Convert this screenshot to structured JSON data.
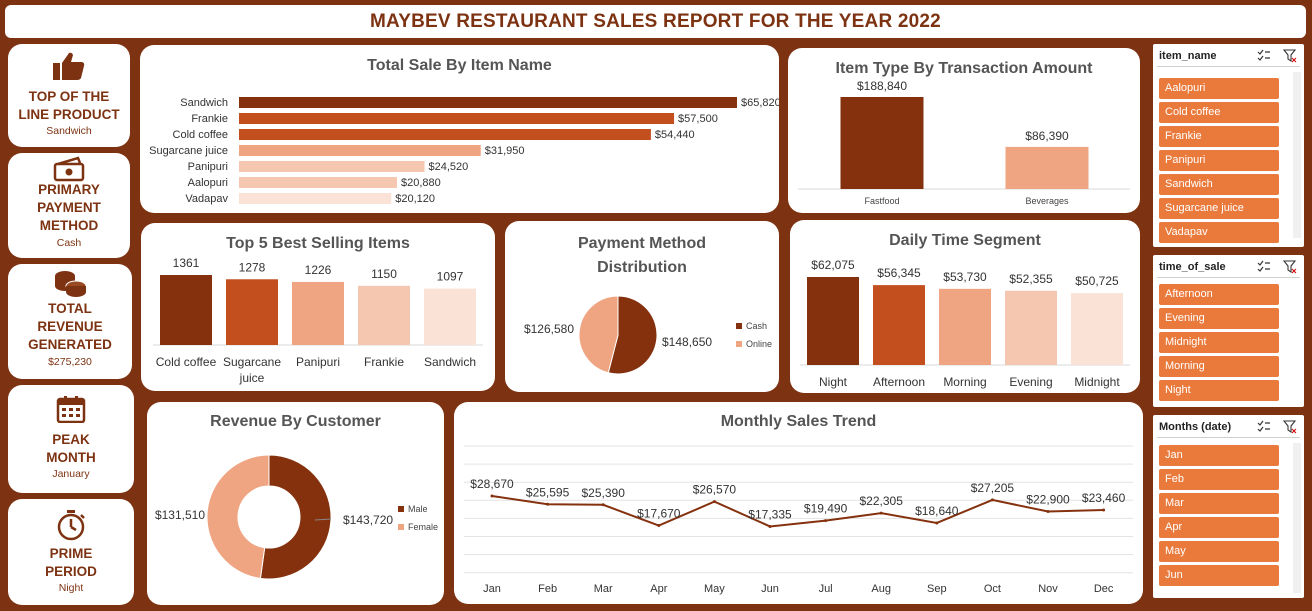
{
  "header": {
    "title": "MAYBEV RESTAURANT SALES REPORT FOR THE YEAR 2022"
  },
  "kpis": [
    {
      "title": "TOP OF THE LINE PRODUCT",
      "value": "Sandwich",
      "icon": "thumbs-up-icon"
    },
    {
      "title": "PRIMARY PAYMENT METHOD",
      "value": "Cash",
      "icon": "cash-icon"
    },
    {
      "title": "TOTAL REVENUE GENERATED",
      "value": "$275,230",
      "icon": "coins-icon"
    },
    {
      "title": "PEAK MONTH",
      "value": "January",
      "icon": "calendar-icon"
    },
    {
      "title": "PRIME PERIOD",
      "value": "Night",
      "icon": "stopwatch-icon"
    }
  ],
  "colors": {
    "brand_dark": "#7d3312",
    "c1": "#85310e",
    "c2": "#c24f1d",
    "c3": "#f0a582",
    "c4": "#f6c7b0",
    "c5": "#fbe2d6",
    "slicer_item": "#ea7a3c"
  },
  "chart_data": [
    {
      "id": "sales_by_item",
      "type": "bar",
      "orientation": "horizontal",
      "title": "Total Sale By Item Name",
      "categories": [
        "Sandwich",
        "Frankie",
        "Cold coffee",
        "Sugarcane juice",
        "Panipuri",
        "Aalopuri",
        "Vadapav"
      ],
      "values": [
        65820,
        57500,
        54440,
        31950,
        24520,
        20880,
        20120
      ],
      "labels": [
        "$65,820",
        "$57,500",
        "$54,440",
        "$31,950",
        "$24,520",
        "$20,880",
        "$20,120"
      ],
      "colors": [
        "#85310e",
        "#c24f1d",
        "#c24f1d",
        "#f0a582",
        "#f6c7b0",
        "#f6c7b0",
        "#fbe2d6"
      ]
    },
    {
      "id": "item_type",
      "type": "bar",
      "title": "Item Type By Transaction Amount",
      "categories": [
        "Fastfood",
        "Beverages"
      ],
      "values": [
        188840,
        86390
      ],
      "labels": [
        "$188,840",
        "$86,390"
      ],
      "colors": [
        "#85310e",
        "#f0a582"
      ]
    },
    {
      "id": "top5_items",
      "type": "bar",
      "title": "Top 5 Best Selling Items",
      "categories": [
        "Cold coffee",
        "Sugarcane juice",
        "Panipuri",
        "Frankie",
        "Sandwich"
      ],
      "values": [
        1361,
        1278,
        1226,
        1150,
        1097
      ],
      "labels": [
        "1361",
        "1278",
        "1226",
        "1150",
        "1097"
      ],
      "colors": [
        "#85310e",
        "#c24f1d",
        "#f0a582",
        "#f6c7b0",
        "#fbe2d6"
      ]
    },
    {
      "id": "payment_method",
      "type": "pie",
      "title": "Payment Method Distribution",
      "categories": [
        "Cash",
        "Online"
      ],
      "values": [
        148650,
        126580
      ],
      "labels": [
        "$148,650",
        "$126,580"
      ],
      "colors": [
        "#85310e",
        "#f0a582"
      ]
    },
    {
      "id": "daily_time",
      "type": "bar",
      "title": "Daily Time Segment",
      "categories": [
        "Night",
        "Afternoon",
        "Morning",
        "Evening",
        "Midnight"
      ],
      "values": [
        62075,
        56345,
        53730,
        52355,
        50725
      ],
      "labels": [
        "$62,075",
        "$56,345",
        "$53,730",
        "$52,355",
        "$50,725"
      ],
      "colors": [
        "#85310e",
        "#c24f1d",
        "#f0a582",
        "#f6c7b0",
        "#fbe2d6"
      ]
    },
    {
      "id": "revenue_by_customer",
      "type": "pie",
      "donut": true,
      "title": "Revenue By Customer",
      "categories": [
        "Male",
        "Female"
      ],
      "values": [
        143720,
        131510
      ],
      "labels": [
        "$143,720",
        "$131,510"
      ],
      "colors": [
        "#85310e",
        "#f0a582"
      ]
    },
    {
      "id": "monthly_trend",
      "type": "line",
      "title": "Monthly Sales Trend",
      "categories": [
        "Jan",
        "Feb",
        "Mar",
        "Apr",
        "May",
        "Jun",
        "Jul",
        "Aug",
        "Sep",
        "Oct",
        "Nov",
        "Dec"
      ],
      "values": [
        28670,
        25595,
        25390,
        17670,
        26570,
        17335,
        19490,
        22305,
        18640,
        27205,
        22900,
        23460
      ],
      "labels": [
        "$28,670",
        "$25,595",
        "$25,390",
        "$17,670",
        "$26,570",
        "$17,335",
        "$19,490",
        "$22,305",
        "$18,640",
        "$27,205",
        "$22,900",
        "$23,460"
      ],
      "color": "#85310e",
      "grid": true
    }
  ],
  "slicers": [
    {
      "header": "item_name",
      "items": [
        "Aalopuri",
        "Cold coffee",
        "Frankie",
        "Panipuri",
        "Sandwich",
        "Sugarcane juice",
        "Vadapav"
      ]
    },
    {
      "header": "time_of_sale",
      "items": [
        "Afternoon",
        "Evening",
        "Midnight",
        "Morning",
        "Night"
      ]
    },
    {
      "header": "Months (date)",
      "items": [
        "Jan",
        "Feb",
        "Mar",
        "Apr",
        "May",
        "Jun"
      ]
    }
  ]
}
